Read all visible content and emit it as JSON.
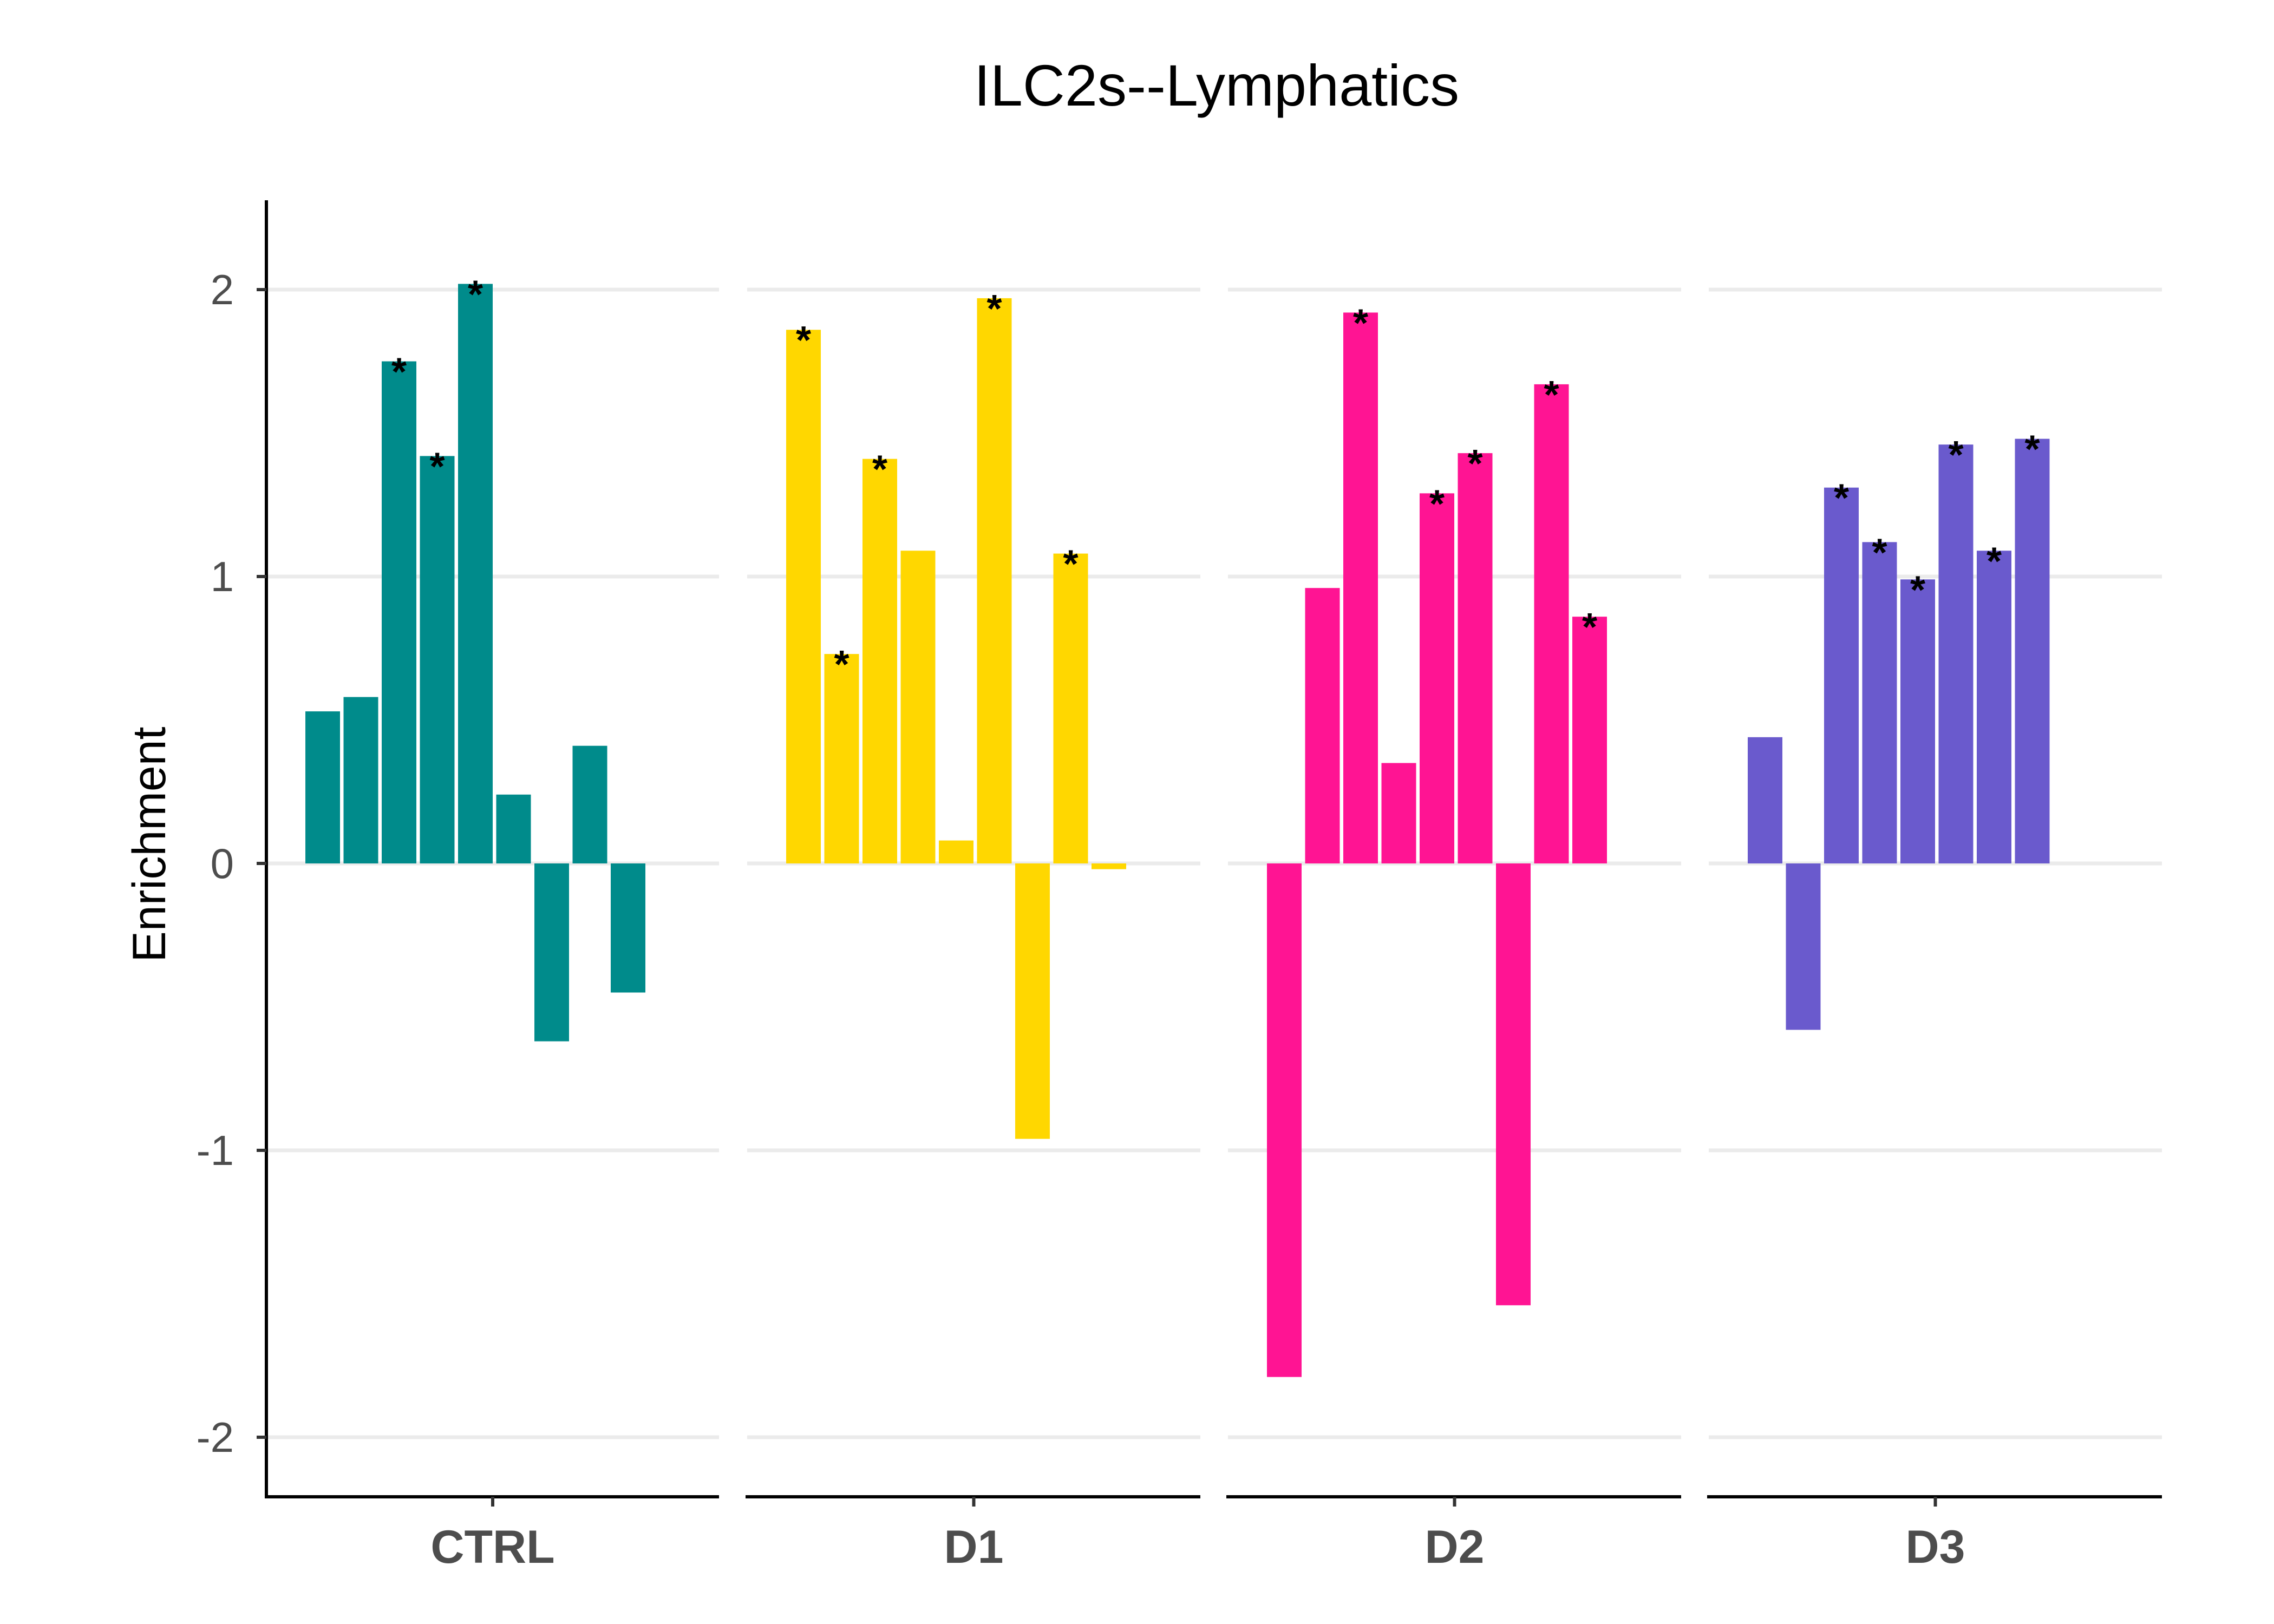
{
  "chart_data": {
    "type": "bar",
    "title": "ILC2s--Lymphatics",
    "xlabel": "",
    "ylabel": "Enrichment",
    "ylim": [
      -2.2,
      2.3
    ],
    "yticks": [
      -2,
      -1,
      0,
      1,
      2
    ],
    "ytick_labels": [
      "-2",
      "-1",
      "0",
      "1",
      "2"
    ],
    "grid": "horizontal",
    "legend": "none",
    "significance_marker": "*",
    "panels": [
      {
        "name": "CTRL",
        "color": "#008B8B",
        "values": [
          0.53,
          0.58,
          1.75,
          1.42,
          2.02,
          0.24,
          -0.62,
          0.41,
          -0.45
        ],
        "significant": [
          false,
          false,
          true,
          true,
          true,
          false,
          false,
          false,
          false
        ]
      },
      {
        "name": "D1",
        "color": "#FFD700",
        "values": [
          1.86,
          0.73,
          1.41,
          1.09,
          0.08,
          1.97,
          -0.96,
          1.08,
          -0.02
        ],
        "significant": [
          true,
          true,
          true,
          false,
          false,
          true,
          false,
          true,
          false
        ]
      },
      {
        "name": "D2",
        "color": "#FF1493",
        "values": [
          -1.79,
          0.96,
          1.92,
          0.35,
          1.29,
          1.43,
          -1.54,
          1.67,
          0.86
        ],
        "significant": [
          false,
          false,
          true,
          false,
          true,
          true,
          false,
          true,
          true
        ]
      },
      {
        "name": "D3",
        "color": "#6A5ACD",
        "values": [
          0.44,
          -0.58,
          1.31,
          1.12,
          0.99,
          1.46,
          1.09,
          1.48
        ],
        "significant": [
          false,
          false,
          true,
          true,
          true,
          true,
          true,
          true
        ]
      }
    ]
  }
}
